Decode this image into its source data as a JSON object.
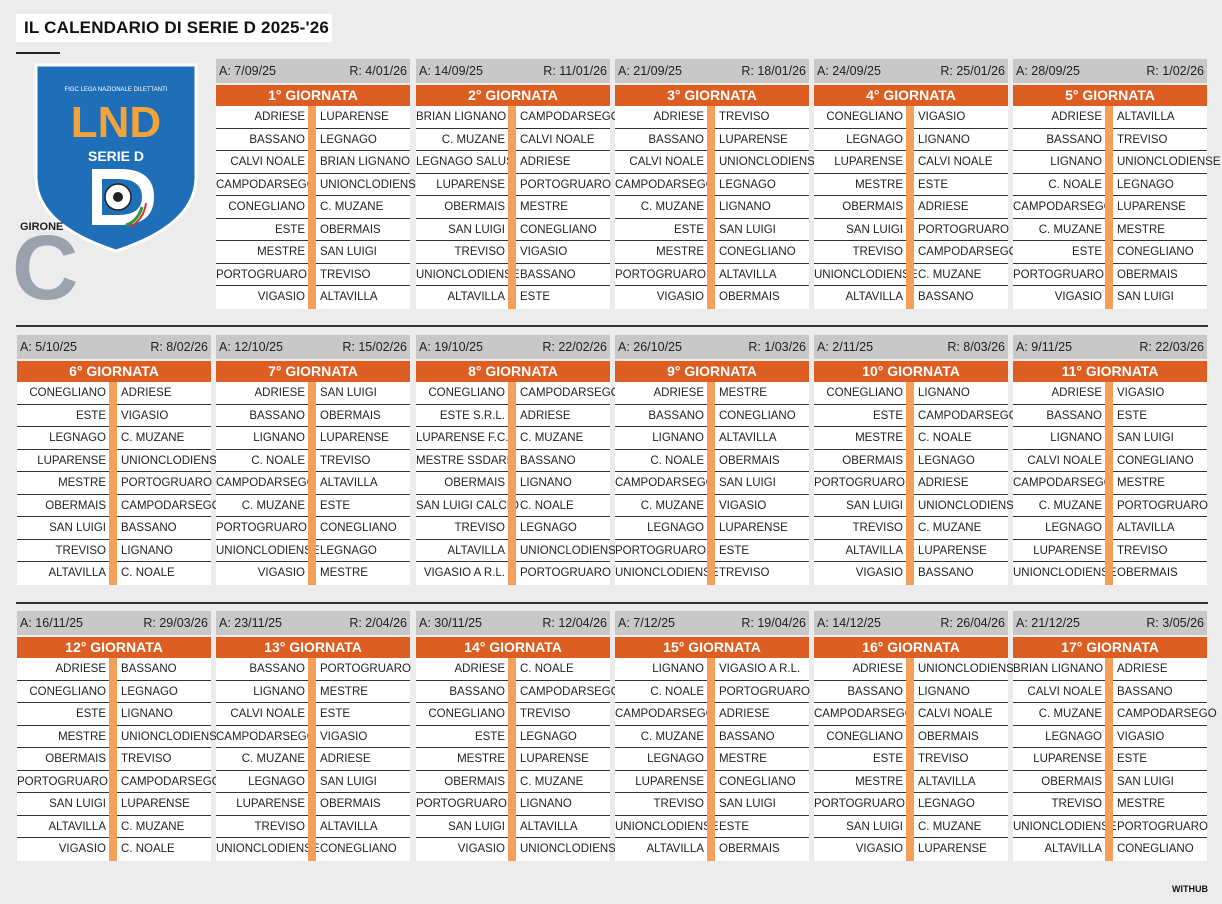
{
  "title": "IL CALENDARIO DI SERIE D 2025-'26",
  "logo": {
    "top_text": "FIGC LEGA NAZIONALE DILETTANTI",
    "brand": "LND",
    "sub": "SERIE D",
    "letter": "D"
  },
  "girone": {
    "label": "GIRONE",
    "letter": "C"
  },
  "credit": "WITHUB",
  "colors": {
    "orange": "#dc5e22",
    "light_orange": "#f5a05a",
    "grey": "#c8c8c8",
    "shield_blue": "#1f6fb8"
  },
  "giornate": [
    {
      "andata": "A: 7/09/25",
      "ritorno": "R: 4/01/26",
      "name": "1° GIORNATA",
      "matches": [
        [
          "ADRIESE",
          "LUPARENSE"
        ],
        [
          "BASSANO",
          "LEGNAGO"
        ],
        [
          "CALVI NOALE",
          "BRIAN LIGNANO"
        ],
        [
          "CAMPODARSEGO",
          "UNIONCLODIENSE"
        ],
        [
          "CONEGLIANO",
          "C. MUZANE"
        ],
        [
          "ESTE",
          "OBERMAIS"
        ],
        [
          "MESTRE",
          "SAN LUIGI"
        ],
        [
          "PORTOGRUARO",
          "TREVISO"
        ],
        [
          "VIGASIO",
          "ALTAVILLA"
        ]
      ]
    },
    {
      "andata": "A: 14/09/25",
      "ritorno": "R: 11/01/26",
      "name": "2° GIORNATA",
      "matches": [
        [
          "BRIAN LIGNANO",
          "CAMPODARSEGO"
        ],
        [
          "C. MUZANE",
          "CALVI NOALE"
        ],
        [
          "LEGNAGO SALUS",
          "ADRIESE"
        ],
        [
          "LUPARENSE",
          "PORTOGRUARO"
        ],
        [
          "OBERMAIS",
          "MESTRE"
        ],
        [
          "SAN LUIGI",
          "CONEGLIANO"
        ],
        [
          "TREVISO",
          "VIGASIO"
        ],
        [
          "UNIONCLODIENSE",
          "BASSANO"
        ],
        [
          "ALTAVILLA",
          "ESTE"
        ]
      ]
    },
    {
      "andata": "A: 21/09/25",
      "ritorno": "R: 18/01/26",
      "name": "3° GIORNATA",
      "matches": [
        [
          "ADRIESE",
          "TREVISO"
        ],
        [
          "BASSANO",
          "LUPARENSE"
        ],
        [
          "CALVI NOALE",
          "UNIONCLODIENSE"
        ],
        [
          "CAMPODARSEGO",
          "LEGNAGO"
        ],
        [
          "C. MUZANE",
          "LIGNANO"
        ],
        [
          "ESTE",
          "SAN LUIGI"
        ],
        [
          "MESTRE",
          "CONEGLIANO"
        ],
        [
          "PORTOGRUARO",
          "ALTAVILLA"
        ],
        [
          "VIGASIO",
          "OBERMAIS"
        ]
      ]
    },
    {
      "andata": "A: 24/09/25",
      "ritorno": "R: 25/01/26",
      "name": "4° GIORNATA",
      "matches": [
        [
          "CONEGLIANO",
          "VIGASIO"
        ],
        [
          "LEGNAGO",
          "LIGNANO"
        ],
        [
          "LUPARENSE",
          "CALVI NOALE"
        ],
        [
          "MESTRE",
          "ESTE"
        ],
        [
          "OBERMAIS",
          "ADRIESE"
        ],
        [
          "SAN LUIGI",
          "PORTOGRUARO"
        ],
        [
          "TREVISO",
          "CAMPODARSEGO"
        ],
        [
          "UNIONCLODIENSE",
          "C. MUZANE"
        ],
        [
          "ALTAVILLA",
          "BASSANO"
        ]
      ]
    },
    {
      "andata": "A: 28/09/25",
      "ritorno": "R: 1/02/26",
      "name": "5° GIORNATA",
      "matches": [
        [
          "ADRIESE",
          "ALTAVILLA"
        ],
        [
          "BASSANO",
          "TREVISO"
        ],
        [
          "LIGNANO",
          "UNIONCLODIENSE"
        ],
        [
          "C. NOALE",
          "LEGNAGO"
        ],
        [
          "CAMPODARSEGO",
          "LUPARENSE"
        ],
        [
          "C. MUZANE",
          "MESTRE"
        ],
        [
          "ESTE",
          "CONEGLIANO"
        ],
        [
          "PORTOGRUARO",
          "OBERMAIS"
        ],
        [
          "VIGASIO",
          "SAN LUIGI"
        ]
      ]
    },
    {
      "andata": "A: 5/10/25",
      "ritorno": "R: 8/02/26",
      "name": "6° GIORNATA",
      "matches": [
        [
          "CONEGLIANO",
          "ADRIESE"
        ],
        [
          "ESTE",
          "VIGASIO"
        ],
        [
          "LEGNAGO",
          "C. MUZANE"
        ],
        [
          "LUPARENSE",
          "UNIONCLODIENSE"
        ],
        [
          "MESTRE",
          "PORTOGRUARO"
        ],
        [
          "OBERMAIS",
          "CAMPODARSEGO"
        ],
        [
          "SAN LUIGI",
          "BASSANO"
        ],
        [
          "TREVISO",
          "LIGNANO"
        ],
        [
          "ALTAVILLA",
          "C. NOALE"
        ]
      ]
    },
    {
      "andata": "A: 12/10/25",
      "ritorno": "R: 15/02/26",
      "name": "7° GIORNATA",
      "matches": [
        [
          "ADRIESE",
          "SAN LUIGI"
        ],
        [
          "BASSANO",
          "OBERMAIS"
        ],
        [
          "LIGNANO",
          "LUPARENSE"
        ],
        [
          "C. NOALE",
          "TREVISO"
        ],
        [
          "CAMPODARSEGO",
          "ALTAVILLA"
        ],
        [
          "C. MUZANE",
          "ESTE"
        ],
        [
          "PORTOGRUARO",
          "CONEGLIANO"
        ],
        [
          "UNIONCLODIENSE",
          "LEGNAGO"
        ],
        [
          "VIGASIO",
          "MESTRE"
        ]
      ]
    },
    {
      "andata": "A: 19/10/25",
      "ritorno": "R: 22/02/26",
      "name": "8° GIORNATA",
      "matches": [
        [
          "CONEGLIANO",
          "CAMPODARSEGO"
        ],
        [
          "ESTE S.R.L.",
          "ADRIESE"
        ],
        [
          "LUPARENSE F.C.",
          "C. MUZANE"
        ],
        [
          "MESTRE SSDARL",
          "BASSANO"
        ],
        [
          "OBERMAIS",
          "LIGNANO"
        ],
        [
          "SAN LUIGI CALCIO",
          "C. NOALE"
        ],
        [
          "TREVISO",
          "LEGNAGO"
        ],
        [
          "ALTAVILLA",
          "UNIONCLODIENSE"
        ],
        [
          "VIGASIO A R.L.",
          "PORTOGRUARO"
        ]
      ]
    },
    {
      "andata": "A: 26/10/25",
      "ritorno": "R: 1/03/26",
      "name": "9° GIORNATA",
      "matches": [
        [
          "ADRIESE",
          "MESTRE"
        ],
        [
          "BASSANO",
          "CONEGLIANO"
        ],
        [
          "LIGNANO",
          "ALTAVILLA"
        ],
        [
          "C. NOALE",
          "OBERMAIS"
        ],
        [
          "CAMPODARSEGO",
          "SAN LUIGI"
        ],
        [
          "C. MUZANE",
          "VIGASIO"
        ],
        [
          "LEGNAGO",
          "LUPARENSE"
        ],
        [
          "PORTOGRUARO",
          "ESTE"
        ],
        [
          "UNIONCLODIENSE",
          "TREVISO"
        ]
      ]
    },
    {
      "andata": "A: 2/11/25",
      "ritorno": "R: 8/03/26",
      "name": "10° GIORNATA",
      "matches": [
        [
          "CONEGLIANO",
          "LIGNANO"
        ],
        [
          "ESTE",
          "CAMPODARSEGO"
        ],
        [
          "MESTRE",
          "C. NOALE"
        ],
        [
          "OBERMAIS",
          "LEGNAGO"
        ],
        [
          "PORTOGRUARO",
          "ADRIESE"
        ],
        [
          "SAN LUIGI",
          "UNIONCLODIENSE"
        ],
        [
          "TREVISO",
          "C. MUZANE"
        ],
        [
          "ALTAVILLA",
          "LUPARENSE"
        ],
        [
          "VIGASIO",
          "BASSANO"
        ]
      ]
    },
    {
      "andata": "A: 9/11/25",
      "ritorno": "R: 22/03/26",
      "name": "11° GIORNATA",
      "matches": [
        [
          "ADRIESE",
          "VIGASIO"
        ],
        [
          "BASSANO",
          "ESTE"
        ],
        [
          "LIGNANO",
          "SAN LUIGI"
        ],
        [
          "CALVI NOALE",
          "CONEGLIANO"
        ],
        [
          "CAMPODARSEGO",
          "MESTRE"
        ],
        [
          "C. MUZANE",
          "PORTOGRUARO"
        ],
        [
          "LEGNAGO",
          "ALTAVILLA"
        ],
        [
          "LUPARENSE",
          "TREVISO"
        ],
        [
          "UNIONCLODIENSE",
          "OBERMAIS"
        ]
      ]
    },
    {
      "andata": "A: 16/11/25",
      "ritorno": "R: 29/03/26",
      "name": "12° GIORNATA",
      "matches": [
        [
          "ADRIESE",
          "BASSANO"
        ],
        [
          "CONEGLIANO",
          "LEGNAGO"
        ],
        [
          "ESTE",
          "LIGNANO"
        ],
        [
          "MESTRE",
          "UNIONCLODIENSE"
        ],
        [
          "OBERMAIS",
          "TREVISO"
        ],
        [
          "PORTOGRUARO",
          "CAMPODARSEGO"
        ],
        [
          "SAN LUIGI",
          "LUPARENSE"
        ],
        [
          "ALTAVILLA",
          "C. MUZANE"
        ],
        [
          "VIGASIO",
          "C. NOALE"
        ]
      ]
    },
    {
      "andata": "A: 23/11/25",
      "ritorno": "R: 2/04/26",
      "name": "13° GIORNATA",
      "matches": [
        [
          "BASSANO",
          "PORTOGRUARO"
        ],
        [
          "LIGNANO",
          "MESTRE"
        ],
        [
          "CALVI NOALE",
          "ESTE"
        ],
        [
          "CAMPODARSEGO",
          "VIGASIO"
        ],
        [
          "C. MUZANE",
          "ADRIESE"
        ],
        [
          "LEGNAGO",
          "SAN LUIGI"
        ],
        [
          "LUPARENSE",
          "OBERMAIS"
        ],
        [
          "TREVISO",
          "ALTAVILLA"
        ],
        [
          "UNIONCLODIENSE",
          "CONEGLIANO"
        ]
      ]
    },
    {
      "andata": "A: 30/11/25",
      "ritorno": "R: 12/04/26",
      "name": "14° GIORNATA",
      "matches": [
        [
          "ADRIESE",
          "C. NOALE"
        ],
        [
          "BASSANO",
          "CAMPODARSEGO"
        ],
        [
          "CONEGLIANO",
          "TREVISO"
        ],
        [
          "ESTE",
          "LEGNAGO"
        ],
        [
          "MESTRE",
          "LUPARENSE"
        ],
        [
          "OBERMAIS",
          "C. MUZANE"
        ],
        [
          "PORTOGRUARO",
          "LIGNANO"
        ],
        [
          "SAN LUIGI",
          "ALTAVILLA"
        ],
        [
          "VIGASIO",
          "UNIONCLODIENSE"
        ]
      ]
    },
    {
      "andata": "A: 7/12/25",
      "ritorno": "R: 19/04/26",
      "name": "15° GIORNATA",
      "matches": [
        [
          "LIGNANO",
          "VIGASIO A R.L."
        ],
        [
          "C. NOALE",
          "PORTOGRUARO"
        ],
        [
          "CAMPODARSEGO",
          "ADRIESE"
        ],
        [
          "C. MUZANE",
          "BASSANO"
        ],
        [
          "LEGNAGO",
          "MESTRE"
        ],
        [
          "LUPARENSE",
          "CONEGLIANO"
        ],
        [
          "TREVISO",
          "SAN LUIGI"
        ],
        [
          "UNIONCLODIENSE",
          "ESTE"
        ],
        [
          "ALTAVILLA",
          "OBERMAIS"
        ]
      ]
    },
    {
      "andata": "A: 14/12/25",
      "ritorno": "R: 26/04/26",
      "name": "16° GIORNATA",
      "matches": [
        [
          "ADRIESE",
          "UNIONCLODIENSE"
        ],
        [
          "BASSANO",
          "LIGNANO"
        ],
        [
          "CAMPODARSEGO",
          "CALVI NOALE"
        ],
        [
          "CONEGLIANO",
          "OBERMAIS"
        ],
        [
          "ESTE",
          "TREVISO"
        ],
        [
          "MESTRE",
          "ALTAVILLA"
        ],
        [
          "PORTOGRUARO",
          "LEGNAGO"
        ],
        [
          "SAN LUIGI",
          "C. MUZANE"
        ],
        [
          "VIGASIO",
          "LUPARENSE"
        ]
      ]
    },
    {
      "andata": "A: 21/12/25",
      "ritorno": "R: 3/05/26",
      "name": "17° GIORNATA",
      "matches": [
        [
          "BRIAN LIGNANO",
          "ADRIESE"
        ],
        [
          "CALVI NOALE",
          "BASSANO"
        ],
        [
          "C. MUZANE",
          "CAMPODARSEGO"
        ],
        [
          "LEGNAGO",
          "VIGASIO"
        ],
        [
          "LUPARENSE",
          "ESTE"
        ],
        [
          "OBERMAIS",
          "SAN LUIGI"
        ],
        [
          "TREVISO",
          "MESTRE"
        ],
        [
          "UNIONCLODIENSE",
          "PORTOGRUARO"
        ],
        [
          "ALTAVILLA",
          "CONEGLIANO"
        ]
      ]
    }
  ]
}
